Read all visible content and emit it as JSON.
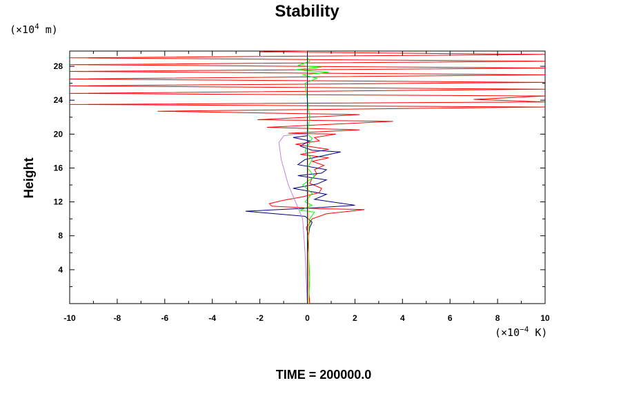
{
  "chart_data": {
    "type": "line",
    "title": "Stability",
    "ylabel": "Height",
    "y_unit_label": {
      "prefix": "(×10",
      "exp": "4",
      "suffix": " m)"
    },
    "x_unit_label": {
      "prefix": "(×10",
      "exp": "−4",
      "suffix": " K)"
    },
    "footer": "TIME = 200000.0",
    "xlim": [
      -10,
      10
    ],
    "ylim": [
      0,
      29.8
    ],
    "x_ticks_major": [
      "-10",
      "-8",
      "-6",
      "-4",
      "-2",
      "0",
      "2",
      "4",
      "6",
      "8",
      "10"
    ],
    "x_ticks_major_values": [
      -10,
      -8,
      -6,
      -4,
      -2,
      0,
      2,
      4,
      6,
      8,
      10
    ],
    "y_ticks_major": [
      "4",
      "8",
      "12",
      "16",
      "20",
      "24",
      "28"
    ],
    "y_ticks_major_values": [
      4,
      8,
      12,
      16,
      20,
      24,
      28
    ],
    "grid": false,
    "series": [
      {
        "color": "#ff0000",
        "points": [
          [
            0.1,
            0
          ],
          [
            0.05,
            2
          ],
          [
            0.05,
            4
          ],
          [
            0.05,
            6
          ],
          [
            0.05,
            8
          ],
          [
            -0.05,
            9
          ],
          [
            0.1,
            9.5
          ],
          [
            0.2,
            10
          ],
          [
            0.8,
            10.6
          ],
          [
            2.4,
            11.1
          ],
          [
            0.5,
            11.2
          ],
          [
            -1.5,
            11.5
          ],
          [
            -1.6,
            11.8
          ],
          [
            -1.0,
            12.2
          ],
          [
            -0.2,
            12.6
          ],
          [
            0.5,
            13.1
          ],
          [
            0.6,
            13.6
          ],
          [
            0.1,
            14.2
          ],
          [
            0.2,
            14.8
          ],
          [
            0.4,
            15.3
          ],
          [
            0.3,
            15.8
          ],
          [
            0.7,
            16.3
          ],
          [
            0.2,
            16.8
          ],
          [
            0.9,
            17.2
          ],
          [
            -0.3,
            17.6
          ],
          [
            0.9,
            18.2
          ],
          [
            -0.5,
            18.8
          ],
          [
            0.5,
            19.2
          ],
          [
            0.3,
            19.6
          ],
          [
            1.2,
            20.0
          ],
          [
            -0.8,
            20.1
          ],
          [
            2.2,
            20.5
          ],
          [
            -1.7,
            20.8
          ],
          [
            3.6,
            21.5
          ],
          [
            -2.1,
            21.7
          ],
          [
            2.2,
            22.3
          ],
          [
            -6.3,
            22.7
          ],
          [
            10,
            23.2
          ],
          [
            -10,
            23.5
          ],
          [
            10,
            23.8
          ],
          [
            7,
            24.1
          ],
          [
            10,
            24.5
          ],
          [
            -10,
            24.8
          ],
          [
            10,
            25.3
          ],
          [
            -10,
            25.7
          ],
          [
            10,
            26.1
          ],
          [
            -10,
            26.5
          ],
          [
            10,
            27.0
          ],
          [
            -10,
            27.4
          ],
          [
            10,
            27.8
          ],
          [
            -10,
            28.2
          ],
          [
            10,
            28.6
          ],
          [
            -10,
            29.0
          ],
          [
            10,
            29.4
          ],
          [
            -2,
            29.7
          ],
          [
            0,
            29.8
          ]
        ]
      },
      {
        "color": "#000080",
        "points": [
          [
            0,
            0
          ],
          [
            0,
            6
          ],
          [
            0.05,
            8
          ],
          [
            0.1,
            9
          ],
          [
            0.2,
            9.6
          ],
          [
            -0.1,
            10.3
          ],
          [
            -2.6,
            10.9
          ],
          [
            0.3,
            11.3
          ],
          [
            2.0,
            11.6
          ],
          [
            0.3,
            12.3
          ],
          [
            0.8,
            12.9
          ],
          [
            -0.6,
            13.6
          ],
          [
            0.4,
            14.1
          ],
          [
            0.8,
            14.6
          ],
          [
            -0.4,
            15.1
          ],
          [
            0.6,
            15.4
          ],
          [
            0.8,
            15.8
          ],
          [
            -0.4,
            16.4
          ],
          [
            -0.1,
            17.0
          ],
          [
            1.4,
            17.9
          ],
          [
            0.2,
            18.1
          ],
          [
            -0.3,
            18.6
          ],
          [
            0.1,
            19.2
          ],
          [
            -0.6,
            19.6
          ],
          [
            0,
            19.8
          ]
        ]
      },
      {
        "color": "#00ff00",
        "points": [
          [
            0.05,
            0
          ],
          [
            0.1,
            3
          ],
          [
            0.05,
            6
          ],
          [
            0.05,
            8
          ],
          [
            0.1,
            10
          ],
          [
            0.3,
            10.8
          ],
          [
            -0.3,
            11.0
          ],
          [
            0.2,
            11.6
          ],
          [
            -0.1,
            12.0
          ],
          [
            0.2,
            13.0
          ],
          [
            -0.2,
            14.0
          ],
          [
            0.3,
            15.0
          ],
          [
            0,
            16.0
          ],
          [
            0.2,
            17.0
          ],
          [
            -0.1,
            18.0
          ],
          [
            0.1,
            19.0
          ],
          [
            0.2,
            19.5
          ],
          [
            0,
            20.0
          ],
          [
            0.1,
            22.0
          ],
          [
            0,
            24.0
          ],
          [
            -0.1,
            26.0
          ],
          [
            0.4,
            26.6
          ],
          [
            -0.2,
            27.0
          ],
          [
            0.9,
            27.3
          ],
          [
            -0.5,
            27.6
          ],
          [
            0.6,
            27.9
          ],
          [
            -0.4,
            28.1
          ],
          [
            0.1,
            28.6
          ],
          [
            0,
            29.0
          ]
        ]
      },
      {
        "color": "#c080e0",
        "points": [
          [
            0,
            0
          ],
          [
            -0.1,
            6
          ],
          [
            -0.2,
            10
          ],
          [
            -0.5,
            12.0
          ],
          [
            -0.8,
            14.0
          ],
          [
            -1.1,
            17.0
          ],
          [
            -1.2,
            19.0
          ],
          [
            -1.0,
            19.8
          ],
          [
            -0.5,
            20.0
          ],
          [
            0,
            20.0
          ]
        ]
      },
      {
        "color": "#ff9900",
        "points": [
          [
            0.05,
            0
          ],
          [
            0.05,
            10
          ],
          [
            0,
            20
          ],
          [
            0,
            29.8
          ]
        ]
      }
    ]
  }
}
